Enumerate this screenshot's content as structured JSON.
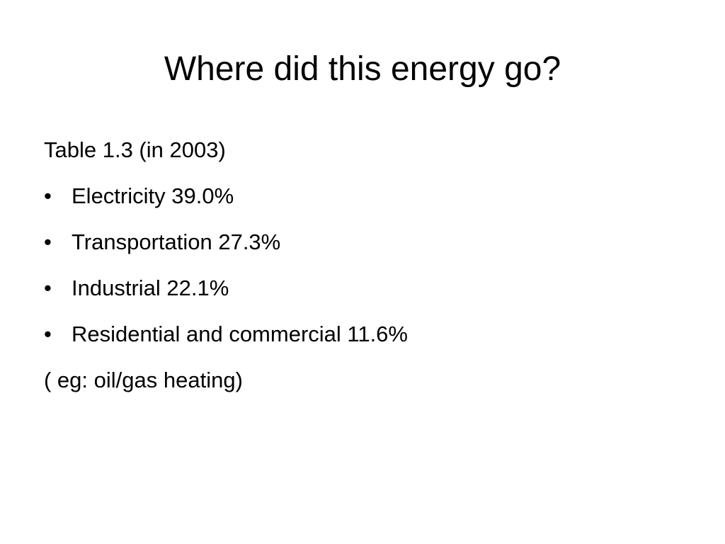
{
  "slide": {
    "title": "Where did this energy go?",
    "intro": "Table 1.3 (in 2003)",
    "bullet_glyph": "•",
    "bullets": [
      "Electricity 39.0%",
      "Transportation 27.3%",
      "Industrial 22.1%",
      "Residential and commercial 11.6%"
    ],
    "note": "( eg: oil/gas heating)"
  },
  "colors": {
    "background": "#ffffff",
    "text": "#000000"
  }
}
